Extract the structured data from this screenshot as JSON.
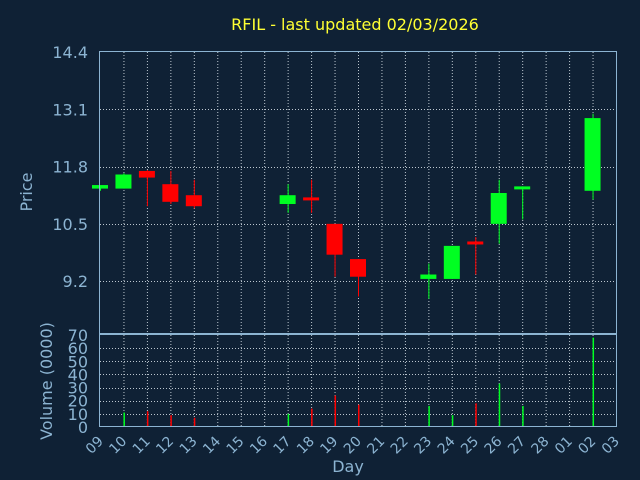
{
  "chart_data": {
    "type": "candlestick",
    "title": "RFIL - last updated 02/03/2026",
    "xlabel": "Day",
    "price_panel": {
      "ylabel": "Price",
      "ylim": [
        8.0,
        14.4
      ],
      "yticks": [
        "14.4",
        "13.1",
        "11.8",
        "10.5",
        "9.2"
      ],
      "ytick_values": [
        14.4,
        13.1,
        11.8,
        10.5,
        9.2
      ],
      "grid": true
    },
    "volume_panel": {
      "ylabel": "Volume (0000)",
      "ylim": [
        0,
        70
      ],
      "yticks": [
        "70",
        "60",
        "50",
        "40",
        "30",
        "20",
        "10",
        "0"
      ],
      "ytick_values": [
        70,
        60,
        50,
        40,
        30,
        20,
        10,
        0
      ],
      "grid": true
    },
    "x_ticks": [
      "09",
      "10",
      "11",
      "12",
      "13",
      "14",
      "15",
      "16",
      "17",
      "18",
      "19",
      "20",
      "21",
      "22",
      "23",
      "24",
      "25",
      "26",
      "27",
      "28",
      "01",
      "02",
      "03"
    ],
    "colors": {
      "up": "#00ff22",
      "down": "#ff0000",
      "title": "#ffff33",
      "axis": "#8cb4d2",
      "background": "#0f2135"
    },
    "candles": [
      {
        "day": "09",
        "open": 11.3,
        "high": 11.35,
        "low": 11.25,
        "close": 11.38,
        "volume": 0
      },
      {
        "day": "10",
        "open": 11.3,
        "high": 11.65,
        "low": 11.3,
        "close": 11.62,
        "volume": 11
      },
      {
        "day": "11",
        "open": 11.7,
        "high": 11.72,
        "low": 10.9,
        "close": 11.55,
        "volume": 12
      },
      {
        "day": "12",
        "open": 11.4,
        "high": 11.7,
        "low": 10.95,
        "close": 11.0,
        "volume": 9
      },
      {
        "day": "13",
        "open": 11.15,
        "high": 11.5,
        "low": 10.85,
        "close": 10.9,
        "volume": 7
      },
      {
        "day": "17",
        "open": 10.95,
        "high": 11.4,
        "low": 10.75,
        "close": 11.15,
        "volume": 10
      },
      {
        "day": "18",
        "open": 11.1,
        "high": 11.5,
        "low": 10.75,
        "close": 11.05,
        "volume": 14
      },
      {
        "day": "19",
        "open": 10.5,
        "high": 10.5,
        "low": 9.3,
        "close": 9.8,
        "volume": 24
      },
      {
        "day": "20",
        "open": 9.7,
        "high": 9.7,
        "low": 8.85,
        "close": 9.3,
        "volume": 17
      },
      {
        "day": "23",
        "open": 9.25,
        "high": 9.6,
        "low": 8.8,
        "close": 9.35,
        "volume": 16
      },
      {
        "day": "24",
        "open": 9.25,
        "high": 10.0,
        "low": 9.25,
        "close": 10.0,
        "volume": 9
      },
      {
        "day": "25",
        "open": 10.1,
        "high": 10.2,
        "low": 9.35,
        "close": 10.05,
        "volume": 18
      },
      {
        "day": "26",
        "open": 10.5,
        "high": 11.5,
        "low": 10.05,
        "close": 11.2,
        "volume": 33
      },
      {
        "day": "27",
        "open": 11.3,
        "high": 11.35,
        "low": 10.6,
        "close": 11.35,
        "volume": 16
      },
      {
        "day": "02",
        "open": 11.25,
        "high": 13.0,
        "low": 11.05,
        "close": 12.9,
        "volume": 68
      }
    ]
  }
}
